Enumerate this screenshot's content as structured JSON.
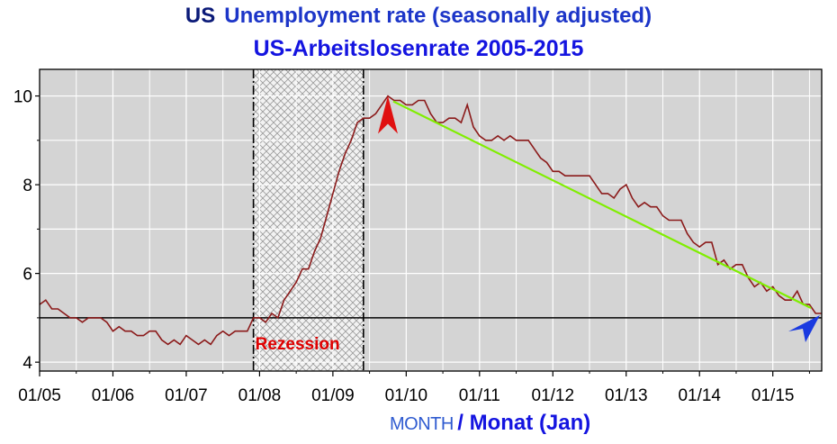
{
  "chart_data": {
    "type": "line",
    "title_line1_country": "US",
    "title_line1_rest": "Unemployment rate (seasonally adjusted)",
    "title_line2": "US-Arbeitslosenrate 2005-2015",
    "xlabel_en": "MONTH",
    "xlabel_de": "/ Monat (Jan)",
    "ylabel": "",
    "x_tick_labels": [
      "01/05",
      "01/06",
      "01/07",
      "01/08",
      "01/09",
      "01/10",
      "01/11",
      "01/12",
      "01/13",
      "01/14",
      "01/15"
    ],
    "y_tick_labels": [
      "4",
      "6",
      "8",
      "10"
    ],
    "xlim": [
      "2005-01",
      "2015-09"
    ],
    "ylim": [
      3.8,
      10.6
    ],
    "grid": true,
    "reference_line": 5.0,
    "recession": {
      "label": "Rezession",
      "start": "2007-12",
      "end": "2009-06"
    },
    "arrows": {
      "peak": {
        "date": "2009-10",
        "value": 10.0,
        "color": "#e01010"
      },
      "end": {
        "date": "2015-09",
        "value": 5.1,
        "color": "#1a3ae0"
      },
      "trend_line_color": "#80ee00"
    },
    "series": [
      {
        "color": "#8b1a1a",
        "start": "2005-01",
        "values": [
          5.3,
          5.4,
          5.2,
          5.2,
          5.1,
          5.0,
          5.0,
          4.9,
          5.0,
          5.0,
          5.0,
          4.9,
          4.7,
          4.8,
          4.7,
          4.7,
          4.6,
          4.6,
          4.7,
          4.7,
          4.5,
          4.4,
          4.5,
          4.4,
          4.6,
          4.5,
          4.4,
          4.5,
          4.4,
          4.6,
          4.7,
          4.6,
          4.7,
          4.7,
          4.7,
          5.0,
          5.0,
          4.9,
          5.1,
          5.0,
          5.4,
          5.6,
          5.8,
          6.1,
          6.1,
          6.5,
          6.8,
          7.3,
          7.8,
          8.3,
          8.7,
          9.0,
          9.4,
          9.5,
          9.5,
          9.6,
          9.8,
          10.0,
          9.9,
          9.9,
          9.8,
          9.8,
          9.9,
          9.9,
          9.6,
          9.4,
          9.4,
          9.5,
          9.5,
          9.4,
          9.8,
          9.3,
          9.1,
          9.0,
          9.0,
          9.1,
          9.0,
          9.1,
          9.0,
          9.0,
          9.0,
          8.8,
          8.6,
          8.5,
          8.3,
          8.3,
          8.2,
          8.2,
          8.2,
          8.2,
          8.2,
          8.0,
          7.8,
          7.8,
          7.7,
          7.9,
          8.0,
          7.7,
          7.5,
          7.6,
          7.5,
          7.5,
          7.3,
          7.2,
          7.2,
          7.2,
          6.9,
          6.7,
          6.6,
          6.7,
          6.7,
          6.2,
          6.3,
          6.1,
          6.2,
          6.2,
          5.9,
          5.7,
          5.8,
          5.6,
          5.7,
          5.5,
          5.4,
          5.4,
          5.6,
          5.3,
          5.3,
          5.1,
          5.1
        ]
      }
    ]
  },
  "colors": {
    "plot_bg": "#d4d4d4",
    "grid": "#ffffff",
    "recession_bg": "#f2f2f2",
    "recession_hatch": "#9a9a9a",
    "recession_label": "#e00000"
  }
}
